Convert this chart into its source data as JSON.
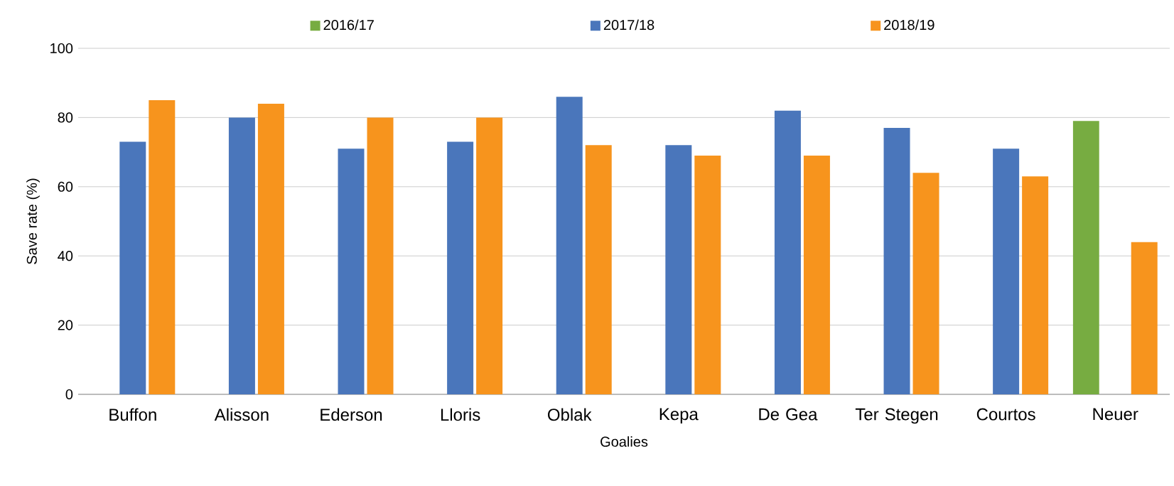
{
  "chart_data": {
    "type": "bar",
    "xlabel": "Goalies",
    "ylabel": "Save rate (%)",
    "categories": [
      "Buffon",
      "Alisson",
      "Ederson",
      "Lloris",
      "Oblak",
      "Kepa",
      "De Gea",
      "Ter Stegen",
      "Courtos",
      "Neuer"
    ],
    "series": [
      {
        "name": "2016/17",
        "color": "#77ac41",
        "values": [
          null,
          null,
          null,
          null,
          null,
          null,
          null,
          null,
          null,
          79
        ]
      },
      {
        "name": "2017/18",
        "color": "#4a76bb",
        "values": [
          73,
          80,
          71,
          73,
          86,
          72,
          82,
          77,
          71,
          null
        ]
      },
      {
        "name": "2018/19",
        "color": "#f7941d",
        "values": [
          85,
          84,
          80,
          80,
          72,
          69,
          69,
          64,
          63,
          44
        ]
      }
    ],
    "ylim": [
      0,
      100
    ],
    "yticks": [
      0,
      20,
      40,
      60,
      80,
      100
    ],
    "grid": "y",
    "legend": "top"
  }
}
